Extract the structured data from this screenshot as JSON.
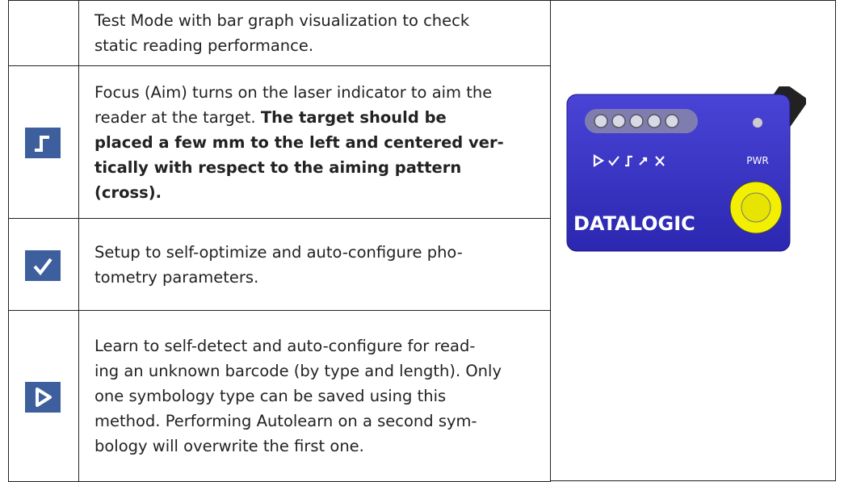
{
  "table": {
    "rows": [
      {
        "icon": null,
        "lines": [
          [
            {
              "text": "Test Mode with bar graph visualization to check",
              "bold": false
            }
          ],
          [
            {
              "text": "static reading performance.",
              "bold": false
            }
          ]
        ]
      },
      {
        "icon": "focus",
        "lines": [
          [
            {
              "text": "Focus (Aim) turns on the laser indicator to aim the",
              "bold": false
            }
          ],
          [
            {
              "text": "reader at the target.",
              "bold": false
            },
            {
              "text": "The target should be",
              "bold": true
            }
          ],
          [
            {
              "text": "placed a few mm to the left and centered ver-",
              "bold": true
            }
          ],
          [
            {
              "text": "tically with respect to the aiming pattern",
              "bold": true
            }
          ],
          [
            {
              "text": "(cross).",
              "bold": true
            }
          ]
        ]
      },
      {
        "icon": "setup",
        "lines": [
          [
            {
              "text": "Setup to self-optimize and auto-configure pho-",
              "bold": false
            }
          ],
          [
            {
              "text": "tometry parameters.",
              "bold": false
            }
          ]
        ]
      },
      {
        "icon": "learn",
        "lines": [
          [
            {
              "text": "Learn to self-detect and auto-configure for read-",
              "bold": false
            }
          ],
          [
            {
              "text": "ing an unknown barcode (by type and length). Only",
              "bold": false
            }
          ],
          [
            {
              "text": "one symbology type can be saved using this",
              "bold": false
            }
          ],
          [
            {
              "text": "method. Performing Autolearn on a second sym-",
              "bold": false
            }
          ],
          [
            {
              "text": "bology will overwrite the first one.",
              "bold": false
            }
          ]
        ]
      }
    ]
  },
  "device": {
    "brand": "DATALOGIC",
    "power_label": "PWR"
  }
}
